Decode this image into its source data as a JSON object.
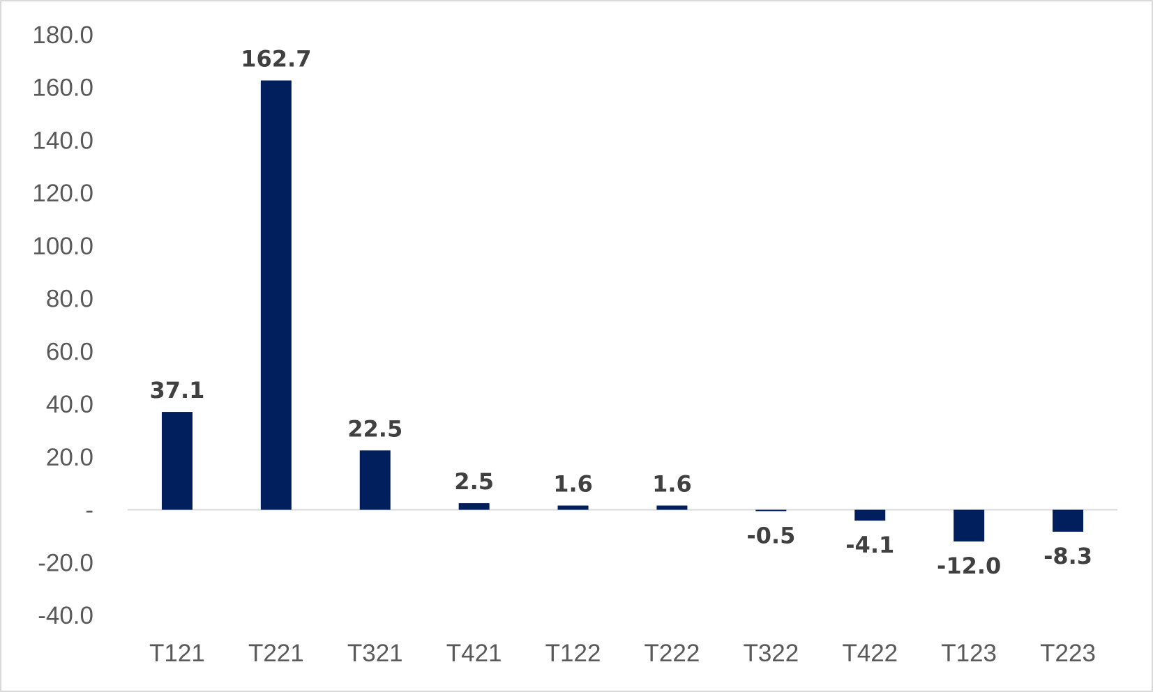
{
  "chart_data": {
    "type": "bar",
    "categories": [
      "T121",
      "T221",
      "T321",
      "T421",
      "T122",
      "T222",
      "T322",
      "T422",
      "T123",
      "T223"
    ],
    "values": [
      37.1,
      162.7,
      22.5,
      2.5,
      1.6,
      1.6,
      -0.5,
      -4.1,
      -12.0,
      -8.3
    ],
    "data_labels": [
      "37.1",
      "162.7",
      "22.5",
      "2.5",
      "1.6",
      "1.6",
      "-0.5",
      "-4.1",
      "-12.0",
      "-8.3"
    ],
    "y_ticks": [
      {
        "value": 180,
        "label": "180.0"
      },
      {
        "value": 160,
        "label": "160.0"
      },
      {
        "value": 140,
        "label": "140.0"
      },
      {
        "value": 120,
        "label": "120.0"
      },
      {
        "value": 100,
        "label": "100.0"
      },
      {
        "value": 80,
        "label": "80.0"
      },
      {
        "value": 60,
        "label": "60.0"
      },
      {
        "value": 40,
        "label": "40.0"
      },
      {
        "value": 20,
        "label": "20.0"
      },
      {
        "value": 0,
        "label": "-"
      },
      {
        "value": -20,
        "label": "-20.0"
      },
      {
        "value": -40,
        "label": "-40.0"
      }
    ],
    "ylim": [
      -40,
      180
    ],
    "bar_color": "#001f5c",
    "axis_color": "#d9d9d9",
    "grid": false,
    "legend": "none"
  }
}
